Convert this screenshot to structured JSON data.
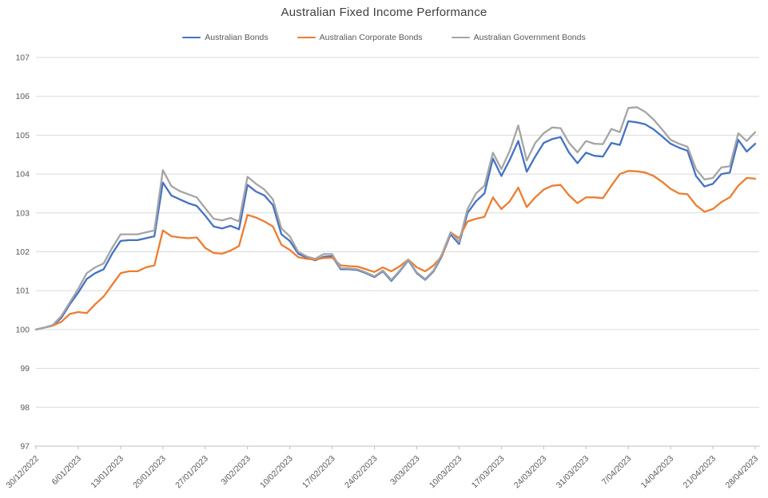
{
  "title": "Australian Fixed Income Performance",
  "chart_data": {
    "type": "line",
    "title": "Australian Fixed Income Performance",
    "ylim": [
      97,
      107
    ],
    "y_ticks": [
      97,
      98,
      99,
      100,
      101,
      102,
      103,
      104,
      105,
      106,
      107
    ],
    "grid": true,
    "legend_position": "top",
    "x_label_every": 5,
    "x_tick_labels": [
      "30/12/2022",
      "6/01/2023",
      "13/01/2023",
      "20/01/2023",
      "27/01/2023",
      "3/02/2023",
      "10/02/2023",
      "17/02/2023",
      "24/02/2023",
      "3/03/2023",
      "10/03/2023",
      "17/03/2023",
      "24/03/2023",
      "31/03/2023",
      "7/04/2023",
      "14/04/2023",
      "21/04/2023",
      "28/04/2023"
    ],
    "categories": [
      "30/12/2022",
      "2/01/2023",
      "3/01/2023",
      "4/01/2023",
      "5/01/2023",
      "6/01/2023",
      "9/01/2023",
      "10/01/2023",
      "11/01/2023",
      "12/01/2023",
      "13/01/2023",
      "16/01/2023",
      "17/01/2023",
      "18/01/2023",
      "19/01/2023",
      "20/01/2023",
      "23/01/2023",
      "24/01/2023",
      "25/01/2023",
      "26/01/2023",
      "27/01/2023",
      "30/01/2023",
      "31/01/2023",
      "1/02/2023",
      "2/02/2023",
      "3/02/2023",
      "6/02/2023",
      "7/02/2023",
      "8/02/2023",
      "9/02/2023",
      "10/02/2023",
      "13/02/2023",
      "14/02/2023",
      "15/02/2023",
      "16/02/2023",
      "17/02/2023",
      "20/02/2023",
      "21/02/2023",
      "22/02/2023",
      "23/02/2023",
      "24/02/2023",
      "27/02/2023",
      "28/02/2023",
      "1/03/2023",
      "2/03/2023",
      "3/03/2023",
      "6/03/2023",
      "7/03/2023",
      "8/03/2023",
      "9/03/2023",
      "10/03/2023",
      "13/03/2023",
      "14/03/2023",
      "15/03/2023",
      "16/03/2023",
      "17/03/2023",
      "20/03/2023",
      "21/03/2023",
      "22/03/2023",
      "23/03/2023",
      "24/03/2023",
      "27/03/2023",
      "28/03/2023",
      "29/03/2023",
      "30/03/2023",
      "31/03/2023",
      "3/04/2023",
      "4/04/2023",
      "5/04/2023",
      "6/04/2023",
      "7/04/2023",
      "10/04/2023",
      "11/04/2023",
      "12/04/2023",
      "13/04/2023",
      "14/04/2023",
      "17/04/2023",
      "18/04/2023",
      "19/04/2023",
      "20/04/2023",
      "21/04/2023",
      "24/04/2023",
      "25/04/2023",
      "26/04/2023",
      "27/04/2023",
      "28/04/2023"
    ],
    "series": [
      {
        "name": "Australian Bonds",
        "color": "#4472C4",
        "values": [
          100.0,
          100.05,
          100.1,
          100.3,
          100.65,
          100.95,
          101.3,
          101.45,
          101.55,
          101.95,
          102.28,
          102.3,
          102.3,
          102.35,
          102.4,
          103.78,
          103.45,
          103.35,
          103.25,
          103.18,
          102.93,
          102.65,
          102.6,
          102.67,
          102.58,
          103.72,
          103.55,
          103.45,
          103.2,
          102.45,
          102.28,
          101.95,
          101.85,
          101.78,
          101.87,
          101.89,
          101.55,
          101.55,
          101.53,
          101.45,
          101.35,
          101.5,
          101.25,
          101.5,
          101.78,
          101.45,
          101.28,
          101.5,
          101.9,
          102.45,
          102.2,
          103.0,
          103.3,
          103.5,
          104.4,
          103.95,
          104.37,
          104.85,
          104.06,
          104.45,
          104.8,
          104.9,
          104.95,
          104.55,
          104.28,
          104.55,
          104.47,
          104.45,
          104.8,
          104.75,
          105.36,
          105.33,
          105.28,
          105.15,
          104.97,
          104.78,
          104.68,
          104.6,
          103.95,
          103.68,
          103.75,
          104.0,
          104.04,
          104.88,
          104.58,
          104.78
        ]
      },
      {
        "name": "Australian Corporate Bonds",
        "color": "#ED7D31",
        "values": [
          100.0,
          100.05,
          100.1,
          100.2,
          100.4,
          100.45,
          100.42,
          100.65,
          100.85,
          101.15,
          101.45,
          101.5,
          101.5,
          101.6,
          101.65,
          102.55,
          102.4,
          102.37,
          102.35,
          102.37,
          102.1,
          101.97,
          101.95,
          102.03,
          102.15,
          102.95,
          102.88,
          102.78,
          102.65,
          102.18,
          102.05,
          101.86,
          101.82,
          101.8,
          101.84,
          101.85,
          101.65,
          101.63,
          101.62,
          101.55,
          101.48,
          101.6,
          101.5,
          101.63,
          101.8,
          101.6,
          101.5,
          101.65,
          101.9,
          102.5,
          102.35,
          102.78,
          102.85,
          102.9,
          103.4,
          103.1,
          103.3,
          103.65,
          103.15,
          103.4,
          103.6,
          103.7,
          103.72,
          103.45,
          103.25,
          103.4,
          103.4,
          103.38,
          103.7,
          104.0,
          104.08,
          104.07,
          104.04,
          103.95,
          103.8,
          103.62,
          103.5,
          103.48,
          103.2,
          103.03,
          103.1,
          103.28,
          103.4,
          103.7,
          103.9,
          103.88
        ]
      },
      {
        "name": "Australian Government Bonds",
        "color": "#A5A5A5",
        "values": [
          100.0,
          100.05,
          100.12,
          100.35,
          100.7,
          101.05,
          101.45,
          101.6,
          101.7,
          102.1,
          102.45,
          102.45,
          102.45,
          102.5,
          102.55,
          104.1,
          103.69,
          103.56,
          103.48,
          103.4,
          103.12,
          102.85,
          102.81,
          102.87,
          102.78,
          103.93,
          103.75,
          103.6,
          103.35,
          102.6,
          102.4,
          102.0,
          101.88,
          101.82,
          101.94,
          101.94,
          101.58,
          101.57,
          101.55,
          101.47,
          101.37,
          101.52,
          101.28,
          101.52,
          101.8,
          101.47,
          101.3,
          101.52,
          101.95,
          102.5,
          102.25,
          103.1,
          103.5,
          103.7,
          104.55,
          104.13,
          104.6,
          105.25,
          104.35,
          104.8,
          105.05,
          105.2,
          105.18,
          104.8,
          104.56,
          104.85,
          104.78,
          104.77,
          105.16,
          105.08,
          105.7,
          105.72,
          105.6,
          105.4,
          105.15,
          104.88,
          104.78,
          104.7,
          104.13,
          103.86,
          103.9,
          104.17,
          104.2,
          105.05,
          104.85,
          105.08
        ]
      }
    ]
  }
}
